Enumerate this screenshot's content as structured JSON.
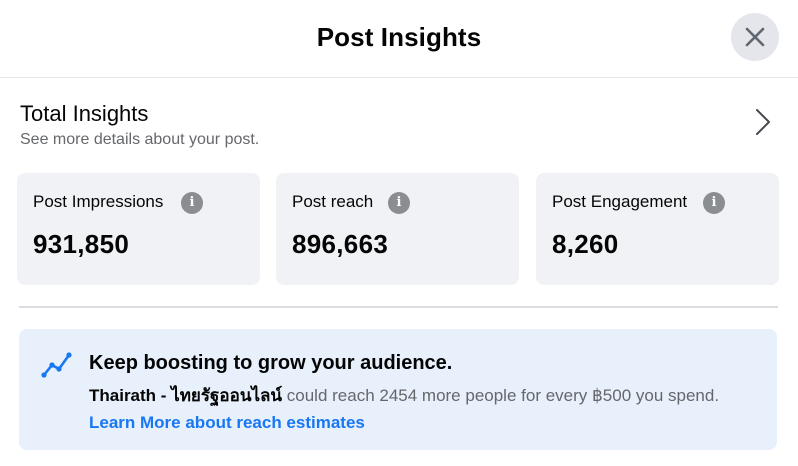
{
  "header": {
    "title": "Post Insights",
    "close_icon": "close-icon"
  },
  "total_insights": {
    "title": "Total Insights",
    "subtitle": "See more details about your post.",
    "chevron_icon": "chevron-right-icon"
  },
  "metrics": [
    {
      "label": "Post Impressions",
      "value": "931,850",
      "icon": "info-icon"
    },
    {
      "label": "Post reach",
      "value": "896,663",
      "icon": "info-icon"
    },
    {
      "label": "Post Engagement",
      "value": "8,260",
      "icon": "info-icon"
    }
  ],
  "promo": {
    "icon": "trend-line-icon",
    "title": "Keep boosting to grow your audience.",
    "page_name": "Thairath - ไทยรัฐออนไลน์",
    "message": " could reach 2454 more people for every ฿500 you spend.",
    "link": "Learn More about reach estimates"
  },
  "colors": {
    "accent": "#1877f2",
    "promo_background": "#e7f0fb",
    "card_background": "#f0f2f5",
    "muted_text": "#65676b"
  }
}
